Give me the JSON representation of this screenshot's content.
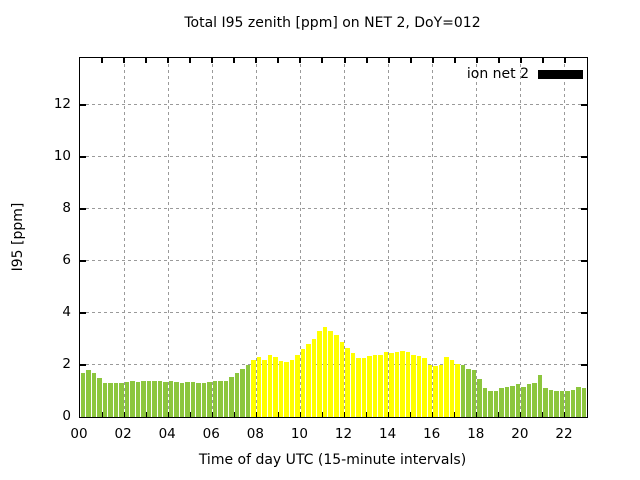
{
  "chart_data": {
    "type": "bar",
    "title": "Total I95 zenith [ppm] on NET 2, DoY=012",
    "xlabel": "Time of day UTC (15-minute intervals)",
    "ylabel": "I95 [ppm]",
    "legend": {
      "label": "ion net 2",
      "swatch_color": "#000000",
      "position": "top-right-inside"
    },
    "grid": {
      "enabled": true,
      "style": "dashed",
      "color": "#9a9a9a",
      "x_step_hours": 2,
      "y_step": 2
    },
    "xlim_hours": [
      0,
      23
    ],
    "ylim": [
      0,
      13.8
    ],
    "yticks": [
      "0",
      "2",
      "4",
      "6",
      "8",
      "10",
      "12"
    ],
    "ytick_values": [
      0,
      2,
      4,
      6,
      8,
      10,
      12
    ],
    "xticks": [
      "00",
      "02",
      "04",
      "06",
      "08",
      "10",
      "12",
      "14",
      "16",
      "18",
      "20",
      "22"
    ],
    "xtick_hours": [
      0,
      2,
      4,
      6,
      8,
      10,
      12,
      14,
      16,
      18,
      20,
      22
    ],
    "minor_tick_every_hours": 1,
    "bar_interval_minutes": 15,
    "palette": {
      "green": "#8CC63E",
      "yellow": "#FFFF00"
    },
    "color_segments": [
      {
        "start_index": 0,
        "end_index": 30,
        "color_key": "green"
      },
      {
        "start_index": 31,
        "end_index": 68,
        "color_key": "yellow"
      },
      {
        "start_index": 69,
        "end_index": 91,
        "color_key": "green"
      }
    ],
    "times": [
      "00:00",
      "00:15",
      "00:30",
      "00:45",
      "01:00",
      "01:15",
      "01:30",
      "01:45",
      "02:00",
      "02:15",
      "02:30",
      "02:45",
      "03:00",
      "03:15",
      "03:30",
      "03:45",
      "04:00",
      "04:15",
      "04:30",
      "04:45",
      "05:00",
      "05:15",
      "05:30",
      "05:45",
      "06:00",
      "06:15",
      "06:30",
      "06:45",
      "07:00",
      "07:15",
      "07:30",
      "07:45",
      "08:00",
      "08:15",
      "08:30",
      "08:45",
      "09:00",
      "09:15",
      "09:30",
      "09:45",
      "10:00",
      "10:15",
      "10:30",
      "10:45",
      "11:00",
      "11:15",
      "11:30",
      "11:45",
      "12:00",
      "12:15",
      "12:30",
      "12:45",
      "13:00",
      "13:15",
      "13:30",
      "13:45",
      "14:00",
      "14:15",
      "14:30",
      "14:45",
      "15:00",
      "15:15",
      "15:30",
      "15:45",
      "16:00",
      "16:15",
      "16:30",
      "16:45",
      "17:00",
      "17:15",
      "17:30",
      "17:45",
      "18:00",
      "18:15",
      "18:30",
      "18:45",
      "19:00",
      "19:15",
      "19:30",
      "19:45",
      "20:00",
      "20:15",
      "20:30",
      "20:45",
      "21:00",
      "21:15",
      "21:30",
      "21:45",
      "22:00",
      "22:15",
      "22:30",
      "22:45"
    ],
    "values": [
      1.7,
      1.8,
      1.7,
      1.5,
      1.3,
      1.3,
      1.3,
      1.3,
      1.35,
      1.4,
      1.35,
      1.4,
      1.4,
      1.4,
      1.4,
      1.35,
      1.4,
      1.35,
      1.3,
      1.35,
      1.35,
      1.3,
      1.3,
      1.35,
      1.4,
      1.4,
      1.4,
      1.55,
      1.7,
      1.85,
      2.0,
      2.2,
      2.3,
      2.2,
      2.4,
      2.3,
      2.15,
      2.1,
      2.2,
      2.4,
      2.6,
      2.8,
      3.0,
      3.3,
      3.45,
      3.3,
      3.15,
      2.9,
      2.65,
      2.45,
      2.25,
      2.25,
      2.35,
      2.4,
      2.4,
      2.5,
      2.45,
      2.5,
      2.55,
      2.5,
      2.4,
      2.35,
      2.25,
      2.0,
      1.95,
      2.0,
      2.3,
      2.2,
      2.05,
      2.0,
      1.85,
      1.8,
      1.45,
      1.1,
      1.0,
      1.0,
      1.1,
      1.15,
      1.2,
      1.25,
      1.15,
      1.25,
      1.3,
      1.6,
      1.1,
      1.05,
      1.0,
      1.0,
      1.0,
      1.05,
      1.15,
      1.1
    ]
  }
}
